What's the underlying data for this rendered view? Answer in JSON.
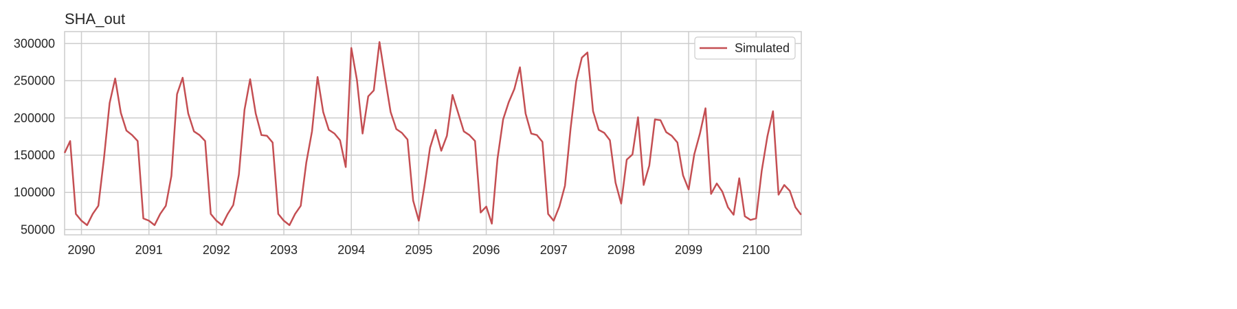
{
  "chart_data": {
    "type": "line",
    "title": "SHA_out",
    "xlabel": "",
    "ylabel": "",
    "x_ticks": [
      "2090",
      "2091",
      "2092",
      "2093",
      "2094",
      "2095",
      "2096",
      "2097",
      "2098",
      "2099",
      "2100"
    ],
    "y_ticks": [
      "50000",
      "100000",
      "150000",
      "200000",
      "250000",
      "300000"
    ],
    "xlim": [
      2089.75,
      2100.67
    ],
    "ylim": [
      43000,
      316000
    ],
    "grid": true,
    "legend_position": "top-right",
    "colors": {
      "series": "#c44e52",
      "grid": "#cccccc",
      "axes": "#cccccc"
    },
    "series": [
      {
        "name": "Simulated",
        "x": [
          2089.75,
          2089.833,
          2089.917,
          2090,
          2090.083,
          2090.167,
          2090.25,
          2090.333,
          2090.417,
          2090.5,
          2090.583,
          2090.667,
          2090.75,
          2090.833,
          2090.917,
          2091,
          2091.083,
          2091.167,
          2091.25,
          2091.333,
          2091.417,
          2091.5,
          2091.583,
          2091.667,
          2091.75,
          2091.833,
          2091.917,
          2092,
          2092.083,
          2092.167,
          2092.25,
          2092.333,
          2092.417,
          2092.5,
          2092.583,
          2092.667,
          2092.75,
          2092.833,
          2092.917,
          2093,
          2093.083,
          2093.167,
          2093.25,
          2093.333,
          2093.417,
          2093.5,
          2093.583,
          2093.667,
          2093.75,
          2093.833,
          2093.917,
          2094,
          2094.083,
          2094.167,
          2094.25,
          2094.333,
          2094.417,
          2094.5,
          2094.583,
          2094.667,
          2094.75,
          2094.833,
          2094.917,
          2095,
          2095.083,
          2095.167,
          2095.25,
          2095.333,
          2095.417,
          2095.5,
          2095.583,
          2095.667,
          2095.75,
          2095.833,
          2095.917,
          2096,
          2096.083,
          2096.167,
          2096.25,
          2096.333,
          2096.417,
          2096.5,
          2096.583,
          2096.667,
          2096.75,
          2096.833,
          2096.917,
          2097,
          2097.083,
          2097.167,
          2097.25,
          2097.333,
          2097.417,
          2097.5,
          2097.583,
          2097.667,
          2097.75,
          2097.833,
          2097.917,
          2098,
          2098.083,
          2098.167,
          2098.25,
          2098.333,
          2098.417,
          2098.5,
          2098.583,
          2098.667,
          2098.75,
          2098.833,
          2098.917,
          2099,
          2099.083,
          2099.167,
          2099.25,
          2099.333,
          2099.417,
          2099.5,
          2099.583,
          2099.667,
          2099.75,
          2099.833,
          2099.917,
          2100,
          2100.083,
          2100.167,
          2100.25,
          2100.333,
          2100.417,
          2100.5,
          2100.583,
          2100.667
        ],
        "values": [
          153000,
          169000,
          71000,
          62000,
          56000,
          71000,
          82000,
          145000,
          220000,
          253000,
          207000,
          183000,
          177000,
          169000,
          65000,
          62000,
          56000,
          71000,
          82000,
          122000,
          232000,
          254000,
          206000,
          182000,
          177000,
          169000,
          71000,
          62000,
          56000,
          71000,
          83000,
          124000,
          211000,
          252000,
          206000,
          177000,
          176000,
          167000,
          71000,
          62000,
          56000,
          71000,
          82000,
          140000,
          182000,
          255000,
          208000,
          184000,
          179000,
          170000,
          134000,
          294000,
          251000,
          179000,
          229000,
          237000,
          302000,
          254000,
          208000,
          185000,
          180000,
          171000,
          89000,
          62000,
          108000,
          160000,
          184000,
          156000,
          176000,
          231000,
          207000,
          182000,
          177000,
          169000,
          73000,
          81000,
          58000,
          145000,
          198000,
          221000,
          239000,
          268000,
          206000,
          179000,
          177000,
          168000,
          71000,
          62000,
          81000,
          109000,
          186000,
          249000,
          281000,
          288000,
          209000,
          184000,
          180000,
          170000,
          113000,
          85000,
          144000,
          151000,
          201000,
          110000,
          136000,
          198000,
          197000,
          181000,
          176000,
          167000,
          123000,
          104000,
          151000,
          179000,
          213000,
          98000,
          112000,
          101000,
          80000,
          70000,
          119000,
          68000,
          63000,
          65000,
          129000,
          175000,
          209000,
          97000,
          110000,
          102000,
          80000,
          70000
        ]
      }
    ]
  }
}
